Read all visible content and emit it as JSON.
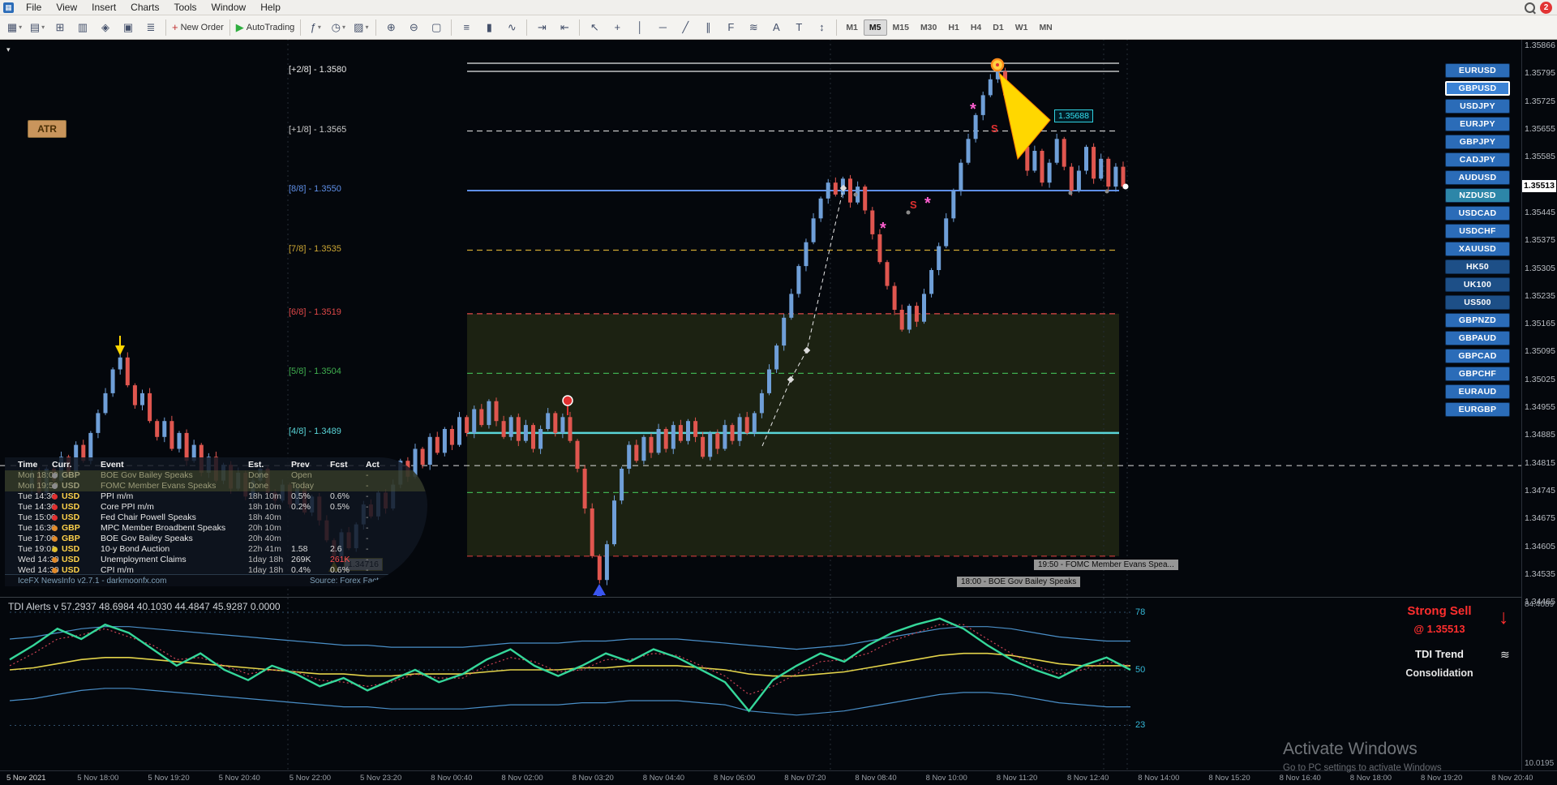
{
  "window": {
    "badge_count": "2"
  },
  "menu": {
    "items": [
      "File",
      "View",
      "Insert",
      "Charts",
      "Tools",
      "Window",
      "Help"
    ]
  },
  "toolbar": {
    "groups": [
      {
        "buttons": [
          {
            "name": "new-chart-button",
            "glyph": "▦",
            "dropdown": true
          },
          {
            "name": "profiles-button",
            "glyph": "▤",
            "dropdown": true
          },
          {
            "name": "market-watch-button",
            "glyph": "⊞"
          },
          {
            "name": "data-window-button",
            "glyph": "▥"
          },
          {
            "name": "navigator-button",
            "glyph": "◈"
          },
          {
            "name": "terminal-button",
            "glyph": "▣"
          },
          {
            "name": "strategy-tester-button",
            "glyph": "≣"
          }
        ]
      },
      {
        "buttons": [
          {
            "name": "new-order-button",
            "glyph": "+",
            "label": "New Order",
            "glyph_color": "#c03030"
          }
        ]
      },
      {
        "buttons": [
          {
            "name": "autotrading-button",
            "glyph": "▶",
            "label": "AutoTrading",
            "glyph_color": "#2fae3f"
          }
        ]
      },
      {
        "buttons": [
          {
            "name": "indicators-button",
            "glyph": "ƒ",
            "dropdown": true
          },
          {
            "name": "periods-button",
            "glyph": "◷",
            "dropdown": true
          },
          {
            "name": "templates-button",
            "glyph": "▨",
            "dropdown": true
          }
        ]
      },
      {
        "buttons": [
          {
            "name": "zoom-in-button",
            "glyph": "⊕"
          },
          {
            "name": "zoom-out-button",
            "glyph": "⊖"
          },
          {
            "name": "tile-windows-button",
            "glyph": "▢"
          }
        ]
      },
      {
        "buttons": [
          {
            "name": "bar-chart-button",
            "glyph": "≡"
          },
          {
            "name": "candlestick-chart-button",
            "glyph": "▮"
          },
          {
            "name": "line-chart-button",
            "glyph": "∿"
          }
        ]
      },
      {
        "buttons": [
          {
            "name": "auto-scroll-button",
            "glyph": "⇥"
          },
          {
            "name": "chart-shift-button",
            "glyph": "⇤"
          }
        ]
      },
      {
        "buttons": [
          {
            "name": "cursor-button",
            "glyph": "↖"
          },
          {
            "name": "crosshair-button",
            "glyph": "+"
          },
          {
            "name": "vertical-line-button",
            "glyph": "│"
          },
          {
            "name": "horizontal-line-button",
            "glyph": "─"
          },
          {
            "name": "trendline-button",
            "glyph": "╱"
          },
          {
            "name": "channel-button",
            "glyph": "∥"
          },
          {
            "name": "fibonacci-button",
            "glyph": "F"
          },
          {
            "name": "shapes-button",
            "glyph": "≋"
          },
          {
            "name": "text-button",
            "glyph": "A"
          },
          {
            "name": "label-button",
            "glyph": "T"
          },
          {
            "name": "arrows-button",
            "glyph": "↕"
          }
        ]
      }
    ],
    "timeframes": [
      "M1",
      "M5",
      "M15",
      "M30",
      "H1",
      "H4",
      "D1",
      "W1",
      "MN"
    ],
    "active_timeframe": "M5"
  },
  "sidebar": {
    "pairs": [
      {
        "label": "EURUSD"
      },
      {
        "label": "GBPUSD",
        "active": true
      },
      {
        "label": "USDJPY"
      },
      {
        "label": "EURJPY"
      },
      {
        "label": "GBPJPY"
      },
      {
        "label": "CADJPY"
      },
      {
        "label": "AUDUSD"
      },
      {
        "label": "NZDUSD",
        "color": "#2d86a8"
      },
      {
        "label": "USDCAD"
      },
      {
        "label": "USDCHF"
      },
      {
        "label": "XAUUSD"
      },
      {
        "label": "HK50",
        "color": "#1d4f87"
      },
      {
        "label": "UK100",
        "color": "#1d4f87"
      },
      {
        "label": "US500",
        "color": "#1d4f87"
      },
      {
        "label": "GBPNZD"
      },
      {
        "label": "GBPAUD"
      },
      {
        "label": "GBPCAD"
      },
      {
        "label": "GBPCHF"
      },
      {
        "label": "EURAUD"
      },
      {
        "label": "EURGBP"
      }
    ]
  },
  "chart": {
    "active_symbol": "GBPUSD",
    "atr_button": "ATR",
    "current_price": "1.35513",
    "high_price_label": "1.35688",
    "low_price_label": "1.34716",
    "event_tags": [
      "19:50 - FOMC Member Evans Spea...",
      "18:00 - BOE Gov Bailey Speaks"
    ],
    "signal_letters": [
      "S",
      "S"
    ]
  },
  "news_panel": {
    "columns": [
      "Time",
      "Curr.",
      "Event",
      "Est.",
      "Prev",
      "Fcst",
      "Act"
    ],
    "rows": [
      {
        "time": "Mon 18:00",
        "impact": "#8a8a8a",
        "curr": "GBP",
        "event": "BOE Gov Bailey Speaks",
        "est": "Done",
        "prev": "Open",
        "fcst": "",
        "act": "-",
        "done": true
      },
      {
        "time": "Mon 19:50",
        "impact": "#8a8a8a",
        "curr": "USD",
        "event": "FOMC Member Evans Speaks",
        "est": "Done",
        "prev": "Today",
        "fcst": "",
        "act": "-",
        "done": true
      },
      {
        "time": "Tue 14:30",
        "impact": "#e03030",
        "curr": "USD",
        "event": "PPI m/m",
        "est": "18h 10m",
        "prev": "0.5%",
        "fcst": "0.6%",
        "act": "-"
      },
      {
        "time": "Tue 14:30",
        "impact": "#e03030",
        "curr": "USD",
        "event": "Core PPI m/m",
        "est": "18h 10m",
        "prev": "0.2%",
        "fcst": "0.5%",
        "act": "-"
      },
      {
        "time": "Tue 15:00",
        "impact": "#e03030",
        "curr": "USD",
        "event": "Fed Chair Powell Speaks",
        "est": "18h 40m",
        "prev": "",
        "fcst": "",
        "act": "-"
      },
      {
        "time": "Tue 16:30",
        "impact": "#e08a2a",
        "curr": "GBP",
        "event": "MPC Member Broadbent Speaks",
        "est": "20h 10m",
        "prev": "",
        "fcst": "",
        "act": "-"
      },
      {
        "time": "Tue 17:00",
        "impact": "#e08a2a",
        "curr": "GBP",
        "event": "BOE Gov Bailey Speaks",
        "est": "20h 40m",
        "prev": "",
        "fcst": "",
        "act": "-"
      },
      {
        "time": "Tue 19:01",
        "impact": "#e0c030",
        "curr": "USD",
        "event": "10-y Bond Auction",
        "est": "22h 41m",
        "prev": "1.58",
        "fcst": "2.6",
        "act": "-"
      },
      {
        "time": "Wed 14:30",
        "impact": "#e08a2a",
        "curr": "USD",
        "event": "Unemployment Claims",
        "est": "1day 18h",
        "prev": "269K",
        "fcst": "261K",
        "act": "-",
        "fcst_red": true
      },
      {
        "time": "Wed 14:30",
        "impact": "#e08a2a",
        "curr": "USD",
        "event": "CPI m/m",
        "est": "1day 18h",
        "prev": "0.4%",
        "fcst": "0.6%",
        "act": "-"
      }
    ],
    "footer_left": "IceFX NewsInfo v2.7.1  -  darkmoonfx.com",
    "footer_right": "Source: Forex Factory"
  },
  "tdi": {
    "title": "TDI Alerts v 57.2937 48.6984 40.1030 44.4847 45.9287 0.0000",
    "levels": [
      "78",
      "50",
      "23"
    ],
    "scale_top": "84.4089",
    "scale_bottom": "10.0195",
    "signal": {
      "line1": "Strong Sell",
      "line2": "@ 1.35513",
      "line3": "TDI Trend",
      "line4": "Consolidation"
    }
  },
  "watermark": {
    "line1": "Activate Windows",
    "line2": "Go to PC settings to activate Windows"
  },
  "chart_data": [
    {
      "type": "candlestick",
      "symbol": "GBPUSD",
      "timeframe": "M5",
      "price_scale": {
        "values": [
          "1.35866",
          "1.35795",
          "1.35725",
          "1.35655",
          "1.35585",
          "1.35445",
          "1.35375",
          "1.35305",
          "1.35235",
          "1.35165",
          "1.35095",
          "1.35025",
          "1.34955",
          "1.34885",
          "1.34815",
          "1.34745",
          "1.34675",
          "1.34605",
          "1.34535",
          "1.34465"
        ],
        "current": "1.35513"
      },
      "time_axis": [
        "5 Nov 2021",
        "5 Nov 18:00",
        "5 Nov 19:20",
        "5 Nov 20:40",
        "5 Nov 22:00",
        "5 Nov 23:20",
        "8 Nov 00:40",
        "8 Nov 02:00",
        "8 Nov 03:20",
        "8 Nov 04:40",
        "8 Nov 06:00",
        "8 Nov 07:20",
        "8 Nov 08:40",
        "8 Nov 10:00",
        "8 Nov 11:20",
        "8 Nov 12:40",
        "8 Nov 14:00",
        "8 Nov 15:20",
        "8 Nov 16:40",
        "8 Nov 18:00",
        "8 Nov 19:20",
        "8 Nov 20:40"
      ],
      "murrey_levels": [
        {
          "label": "[+2/8] - 1.3580",
          "price": 1.358,
          "color": "#e8e8e8",
          "style": "solid",
          "width": 1.3
        },
        {
          "label": "[+1/8] - 1.3565",
          "price": 1.3565,
          "color": "#c8c8c8",
          "style": "dash"
        },
        {
          "label": "[8/8] - 1.3550",
          "price": 1.355,
          "color": "#5f8fe8",
          "style": "solid",
          "width": 2
        },
        {
          "label": "[7/8] - 1.3535",
          "price": 1.3535,
          "color": "#cda733",
          "style": "dash"
        },
        {
          "label": "[6/8] - 1.3519",
          "price": 1.3519,
          "color": "#e04848",
          "style": "dash"
        },
        {
          "label": "[5/8] - 1.3504",
          "price": 1.3504,
          "color": "#3fae4f",
          "style": "dash"
        },
        {
          "label": "[4/8] - 1.3489",
          "price": 1.3489,
          "color": "#59d5d8",
          "style": "solid",
          "width": 2.5
        }
      ],
      "extra_lines": [
        {
          "price": 1.3474,
          "color": "#3fae4f",
          "style": "dash"
        },
        {
          "price": 1.3458,
          "color": "#cc3b3b",
          "style": "dash"
        }
      ],
      "session_open_line_price": 1.34808,
      "range_box": {
        "top_price": 1.3519,
        "bottom_price": 1.3458,
        "fill": "rgba(95,105,35,0.28)"
      },
      "closes_pips": [
        13475,
        13479,
        13474,
        13480,
        13477,
        13483,
        13479,
        13486,
        13482,
        13489,
        13494,
        13499,
        13505,
        13508,
        13501,
        13496,
        13499,
        13492,
        13488,
        13492,
        13485,
        13489,
        13482,
        13486,
        13479,
        13483,
        13477,
        13481,
        13475,
        13479,
        13473,
        13477,
        13480,
        13474,
        13472,
        13476,
        13471,
        13475,
        13469,
        13473,
        13467,
        13462,
        13458,
        13464,
        13460,
        13466,
        13471,
        13468,
        13474,
        13470,
        13476,
        13482,
        13478,
        13485,
        13481,
        13488,
        13484,
        13490,
        13486,
        13493,
        13489,
        13495,
        13491,
        13497,
        13492,
        13488,
        13493,
        13487,
        13491,
        13485,
        13490,
        13494,
        13489,
        13493,
        13487,
        13480,
        13470,
        13458,
        13452,
        13461,
        13472,
        13480,
        13486,
        13482,
        13488,
        13484,
        13490,
        13485,
        13491,
        13487,
        13492,
        13488,
        13483,
        13489,
        13485,
        13491,
        13487,
        13493,
        13489,
        13494,
        13499,
        13505,
        13511,
        13518,
        13524,
        13531,
        13537,
        13543,
        13548,
        13552,
        13549,
        13553,
        13547,
        13551,
        13545,
        13539,
        13532,
        13526,
        13520,
        13515,
        13521,
        13517,
        13524,
        13530,
        13536,
        13543,
        13550,
        13557,
        13563,
        13569,
        13574,
        13578,
        13580,
        13574,
        13568,
        13561,
        13555,
        13560,
        13552,
        13557,
        13563,
        13556,
        13550,
        13555,
        13561,
        13553,
        13558,
        13551,
        13556,
        13551
      ]
    },
    {
      "type": "line",
      "title": "TDI Alerts",
      "ylim": [
        10.0195,
        84.4089
      ],
      "levels": [
        78,
        50,
        23
      ],
      "series": [
        {
          "name": "band-upper",
          "color": "#4a8fc8",
          "width": 1.2,
          "values": [
            65,
            66,
            68,
            70,
            71,
            71,
            70,
            69,
            68,
            67,
            66,
            65,
            64,
            63,
            62,
            62,
            61,
            61,
            61,
            61,
            62,
            63,
            63,
            63,
            64,
            64,
            65,
            65,
            65,
            64,
            63,
            62,
            61,
            60,
            61,
            62,
            64,
            66,
            68,
            70,
            71,
            71,
            70,
            68,
            66,
            65,
            64,
            64
          ]
        },
        {
          "name": "band-lower",
          "color": "#4a8fc8",
          "width": 1.2,
          "values": [
            35,
            36,
            38,
            40,
            41,
            41,
            40,
            39,
            38,
            37,
            36,
            35,
            34,
            33,
            32,
            32,
            31,
            31,
            31,
            31,
            32,
            33,
            33,
            33,
            34,
            34,
            35,
            35,
            35,
            34,
            33,
            30,
            29,
            28,
            29,
            30,
            32,
            34,
            36,
            38,
            39,
            39,
            38,
            36,
            34,
            33,
            32,
            32
          ]
        },
        {
          "name": "market-base-line",
          "color": "#e3d34a",
          "width": 1.6,
          "values": [
            50,
            51,
            53,
            55,
            56,
            56,
            55,
            54,
            53,
            52,
            51,
            50,
            49,
            48,
            48,
            47,
            47,
            48,
            48,
            48,
            49,
            50,
            50,
            50,
            51,
            51,
            52,
            52,
            52,
            51,
            50,
            48,
            47,
            47,
            48,
            49,
            51,
            53,
            55,
            57,
            58,
            58,
            57,
            55,
            53,
            52,
            52,
            52
          ]
        },
        {
          "name": "trade-signal-line",
          "color": "#cc4455",
          "width": 1.2,
          "style": "dotted",
          "values": [
            52,
            58,
            65,
            67,
            70,
            66,
            62,
            55,
            56,
            52,
            48,
            50,
            49,
            45,
            44,
            42,
            44,
            48,
            46,
            46,
            52,
            56,
            54,
            49,
            50,
            55,
            55,
            58,
            57,
            52,
            47,
            38,
            42,
            48,
            54,
            55,
            58,
            64,
            68,
            72,
            72,
            65,
            58,
            52,
            48,
            50,
            54,
            52
          ]
        },
        {
          "name": "rsi-price-line",
          "color": "#35d79a",
          "width": 2.4,
          "values": [
            55,
            62,
            70,
            65,
            72,
            68,
            60,
            52,
            58,
            50,
            45,
            52,
            48,
            42,
            46,
            40,
            45,
            50,
            44,
            48,
            55,
            60,
            52,
            47,
            52,
            58,
            54,
            60,
            56,
            50,
            44,
            30,
            45,
            52,
            58,
            54,
            62,
            68,
            72,
            75,
            70,
            62,
            55,
            50,
            46,
            52,
            56,
            50
          ]
        }
      ]
    }
  ]
}
